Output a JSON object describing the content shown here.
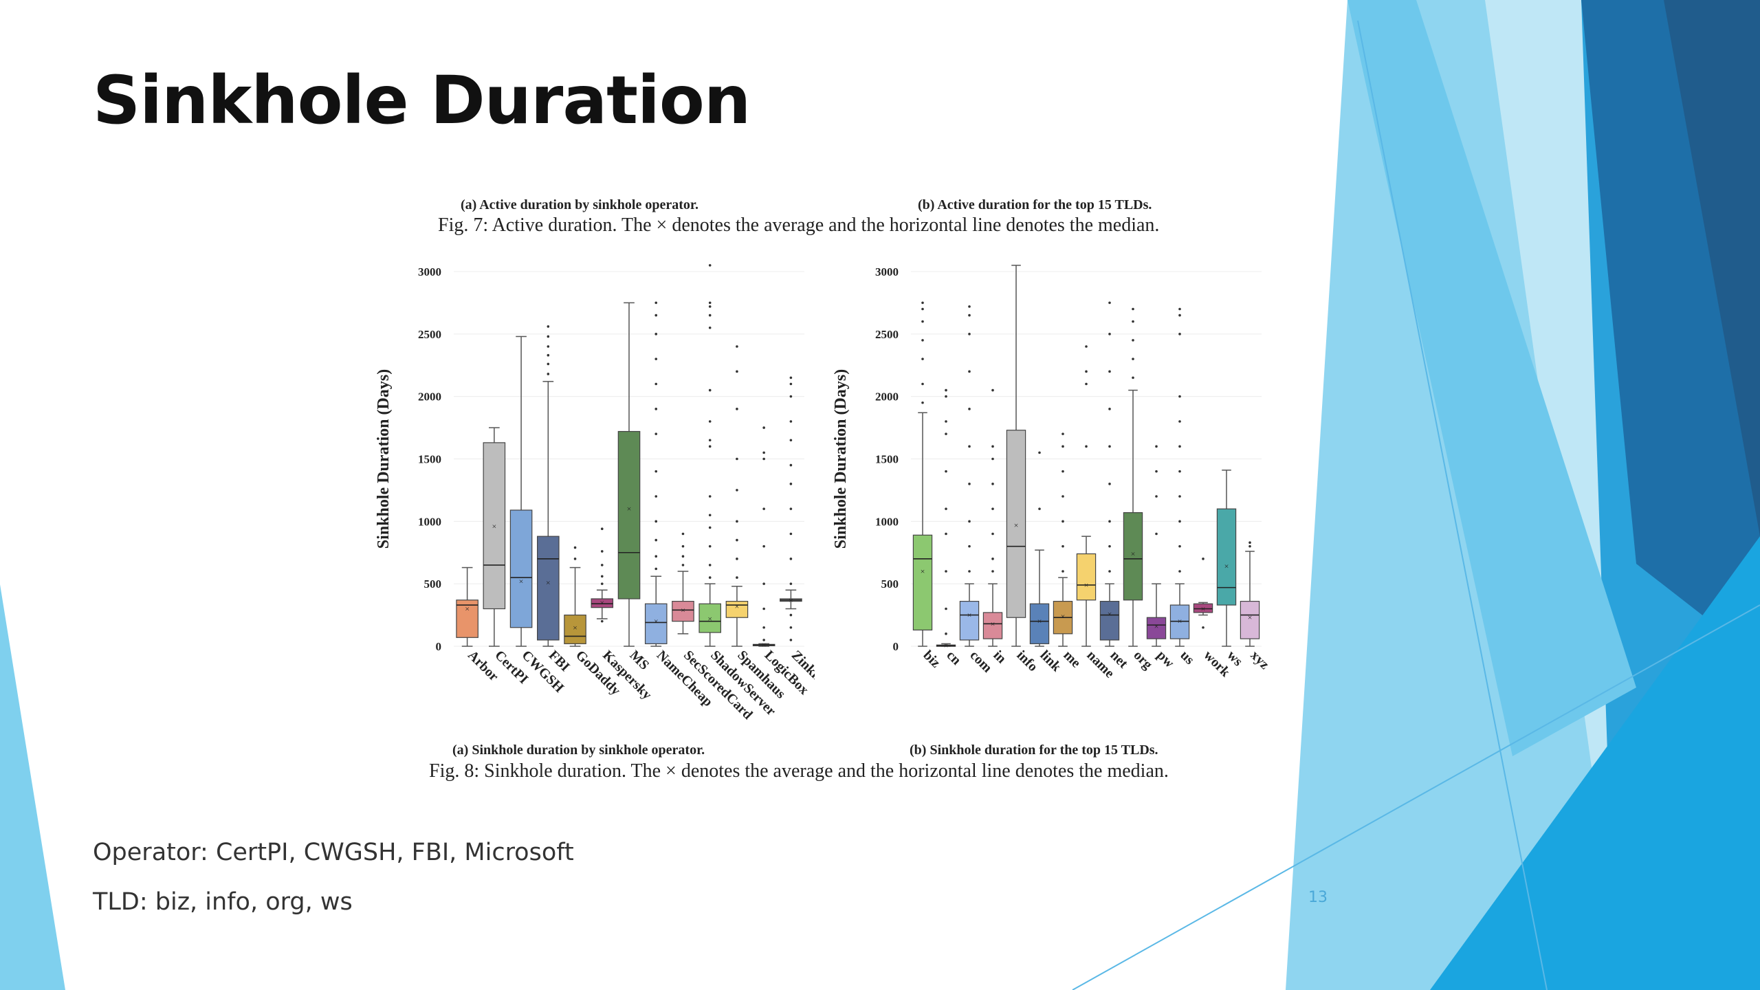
{
  "slide": {
    "title": "Sinkhole Duration",
    "bullets": [
      "Operator: CertPI, CWGSH, FBI, Microsoft",
      "TLD: biz, info, org, ws"
    ],
    "slide_number": "13",
    "accent_colors": [
      "#7fd0ee",
      "#2a9fd6",
      "#1e6fa8",
      "#205c8c"
    ]
  },
  "fig7": {
    "sub_a": "(a) Active duration by sinkhole operator.",
    "sub_b": "(b) Active duration for the top 15 TLDs.",
    "caption": "Fig. 7: Active duration. The × denotes the average and the horizontal line denotes the median."
  },
  "fig8": {
    "sub_a": "(a) Sinkhole duration by sinkhole operator.",
    "sub_b": "(b) Sinkhole duration for the top 15 TLDs.",
    "caption": "Fig. 8: Sinkhole duration. The × denotes the average and the horizontal line denotes the median."
  },
  "chart_data": [
    {
      "type": "box",
      "title": "(a) Sinkhole duration by sinkhole operator.",
      "ylabel": "Sinkhole Duration (Days)",
      "ylim": [
        0,
        3000
      ],
      "yticks": [
        0,
        500,
        1000,
        1500,
        2000,
        2500,
        3000
      ],
      "grid": true,
      "categories": [
        "Arbor",
        "CertPI",
        "CWGSH",
        "FBI",
        "GoDaddy",
        "Kaspersky",
        "MS",
        "NameCheap",
        "SecScoredCard",
        "ShadowServer",
        "Spamhaus",
        "LogicBox",
        "Zinkhole"
      ],
      "colors": [
        "#e8946a",
        "#bdbdbd",
        "#7ea6d8",
        "#5a6e96",
        "#b8963a",
        "#a8487e",
        "#5e8a55",
        "#8fb0e0",
        "#d98a98",
        "#8cc870",
        "#f5d26e",
        "#c0c0c0",
        "#999999"
      ],
      "boxes": [
        {
          "min": 0,
          "q1": 70,
          "median": 330,
          "q3": 370,
          "max": 630,
          "mean": 300,
          "outliers": []
        },
        {
          "min": 0,
          "q1": 300,
          "median": 650,
          "q3": 1630,
          "max": 1750,
          "mean": 960,
          "outliers": []
        },
        {
          "min": 0,
          "q1": 150,
          "median": 550,
          "q3": 1090,
          "max": 2480,
          "mean": 520,
          "outliers": []
        },
        {
          "min": 0,
          "q1": 50,
          "median": 700,
          "q3": 880,
          "max": 2120,
          "mean": 510,
          "outliers": [
            2180,
            2260,
            2330,
            2400,
            2480,
            2560
          ]
        },
        {
          "min": 0,
          "q1": 20,
          "median": 80,
          "q3": 250,
          "max": 630,
          "mean": 150,
          "outliers": [
            700,
            790
          ]
        },
        {
          "min": 220,
          "q1": 310,
          "median": 340,
          "q3": 380,
          "max": 450,
          "mean": 350,
          "outliers": [
            200,
            500,
            560,
            650,
            760,
            940
          ]
        },
        {
          "min": 0,
          "q1": 380,
          "median": 750,
          "q3": 1720,
          "max": 2750,
          "mean": 1100,
          "outliers": []
        },
        {
          "min": 0,
          "q1": 20,
          "median": 190,
          "q3": 340,
          "max": 560,
          "mean": 200,
          "outliers": [
            620,
            720,
            850,
            1000,
            1200,
            1400,
            1700,
            1900,
            2100,
            2300,
            2500,
            2650,
            2750
          ]
        },
        {
          "min": 100,
          "q1": 200,
          "median": 290,
          "q3": 360,
          "max": 600,
          "mean": 290,
          "outliers": [
            650,
            720,
            800,
            900
          ]
        },
        {
          "min": 0,
          "q1": 110,
          "median": 200,
          "q3": 340,
          "max": 500,
          "mean": 220,
          "outliers": [
            550,
            650,
            800,
            950,
            1050,
            1200,
            1600,
            1650,
            1800,
            2050,
            2550,
            2650,
            2720,
            2750,
            3050
          ]
        },
        {
          "min": 0,
          "q1": 230,
          "median": 330,
          "q3": 360,
          "max": 480,
          "mean": 320,
          "outliers": [
            550,
            700,
            850,
            1000,
            1250,
            1500,
            1900,
            2200,
            2400
          ]
        },
        {
          "min": 0,
          "q1": 5,
          "median": 10,
          "q3": 15,
          "max": 20,
          "mean": 10,
          "outliers": [
            50,
            150,
            300,
            500,
            800,
            1100,
            1500,
            1550,
            1750
          ]
        },
        {
          "min": 300,
          "q1": 360,
          "median": 370,
          "q3": 380,
          "max": 450,
          "mean": 370,
          "outliers": [
            50,
            150,
            250,
            500,
            700,
            900,
            1100,
            1300,
            1450,
            1650,
            1800,
            2000,
            2100,
            2150
          ]
        }
      ]
    },
    {
      "type": "box",
      "title": "(b) Sinkhole duration for the top 15 TLDs.",
      "ylabel": "Sinkhole Duration (Days)",
      "ylim": [
        0,
        3000
      ],
      "yticks": [
        0,
        500,
        1000,
        1500,
        2000,
        2500,
        3000
      ],
      "grid": true,
      "categories": [
        "biz",
        "cn",
        "com",
        "in",
        "info",
        "link",
        "me",
        "name",
        "net",
        "org",
        "pw",
        "us",
        "work",
        "ws",
        "xyz"
      ],
      "colors": [
        "#8cc870",
        "#d9c8b0",
        "#9ab8e8",
        "#d98a98",
        "#bdbdbd",
        "#5a82b8",
        "#c89a50",
        "#f5d26e",
        "#5a6e96",
        "#5e8a55",
        "#8a4898",
        "#8fb0e0",
        "#a8487e",
        "#4aa8a8",
        "#d8b8d8"
      ],
      "boxes": [
        {
          "min": 0,
          "q1": 130,
          "median": 700,
          "q3": 890,
          "max": 1870,
          "mean": 600,
          "outliers": [
            1950,
            2100,
            2300,
            2450,
            2600,
            2700,
            2750
          ]
        },
        {
          "min": 0,
          "q1": 0,
          "median": 5,
          "q3": 10,
          "max": 20,
          "mean": 5,
          "outliers": [
            100,
            300,
            600,
            900,
            1100,
            1400,
            1700,
            1800,
            2000,
            2050
          ]
        },
        {
          "min": 0,
          "q1": 50,
          "median": 250,
          "q3": 360,
          "max": 500,
          "mean": 250,
          "outliers": [
            600,
            800,
            1000,
            1300,
            1600,
            1900,
            2200,
            2500,
            2650,
            2720
          ]
        },
        {
          "min": 0,
          "q1": 60,
          "median": 180,
          "q3": 270,
          "max": 500,
          "mean": 180,
          "outliers": [
            600,
            700,
            900,
            1100,
            1300,
            1500,
            1600,
            2050
          ]
        },
        {
          "min": 0,
          "q1": 230,
          "median": 800,
          "q3": 1730,
          "max": 3050,
          "mean": 970,
          "outliers": []
        },
        {
          "min": 0,
          "q1": 20,
          "median": 200,
          "q3": 340,
          "max": 770,
          "mean": 200,
          "outliers": [
            1100,
            1550
          ]
        },
        {
          "min": 0,
          "q1": 100,
          "median": 230,
          "q3": 360,
          "max": 550,
          "mean": 240,
          "outliers": [
            600,
            800,
            1000,
            1200,
            1400,
            1600,
            1700
          ]
        },
        {
          "min": 0,
          "q1": 370,
          "median": 490,
          "q3": 740,
          "max": 880,
          "mean": 490,
          "outliers": [
            1600,
            2100,
            2200,
            2400
          ]
        },
        {
          "min": 0,
          "q1": 50,
          "median": 250,
          "q3": 360,
          "max": 500,
          "mean": 260,
          "outliers": [
            600,
            800,
            1000,
            1300,
            1600,
            1900,
            2200,
            2500,
            2750
          ]
        },
        {
          "min": 0,
          "q1": 370,
          "median": 700,
          "q3": 1070,
          "max": 2050,
          "mean": 740,
          "outliers": [
            2150,
            2300,
            2450,
            2600,
            2700
          ]
        },
        {
          "min": 0,
          "q1": 60,
          "median": 170,
          "q3": 230,
          "max": 500,
          "mean": 160,
          "outliers": [
            900,
            1200,
            1400,
            1600
          ]
        },
        {
          "min": 0,
          "q1": 60,
          "median": 200,
          "q3": 330,
          "max": 500,
          "mean": 200,
          "outliers": [
            600,
            800,
            1000,
            1200,
            1400,
            1600,
            1800,
            2000,
            2500,
            2650,
            2700
          ]
        },
        {
          "min": 250,
          "q1": 270,
          "median": 300,
          "q3": 340,
          "max": 350,
          "mean": 300,
          "outliers": [
            150,
            700
          ]
        },
        {
          "min": 0,
          "q1": 330,
          "median": 470,
          "q3": 1100,
          "max": 1410,
          "mean": 640,
          "outliers": []
        },
        {
          "min": 0,
          "q1": 60,
          "median": 250,
          "q3": 360,
          "max": 760,
          "mean": 230,
          "outliers": [
            800,
            830
          ]
        }
      ]
    }
  ]
}
